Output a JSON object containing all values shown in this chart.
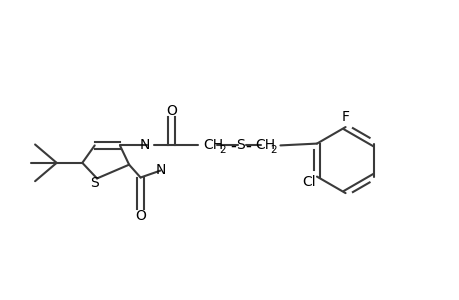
{
  "bg_color": "#ffffff",
  "line_color": "#3a3a3a",
  "fig_width": 4.6,
  "fig_height": 3.0,
  "dpi": 100,
  "xlim": [
    0,
    10
  ],
  "ylim": [
    0,
    4
  ],
  "lw": 1.5,
  "fs": 10,
  "fs_sub": 7.5
}
